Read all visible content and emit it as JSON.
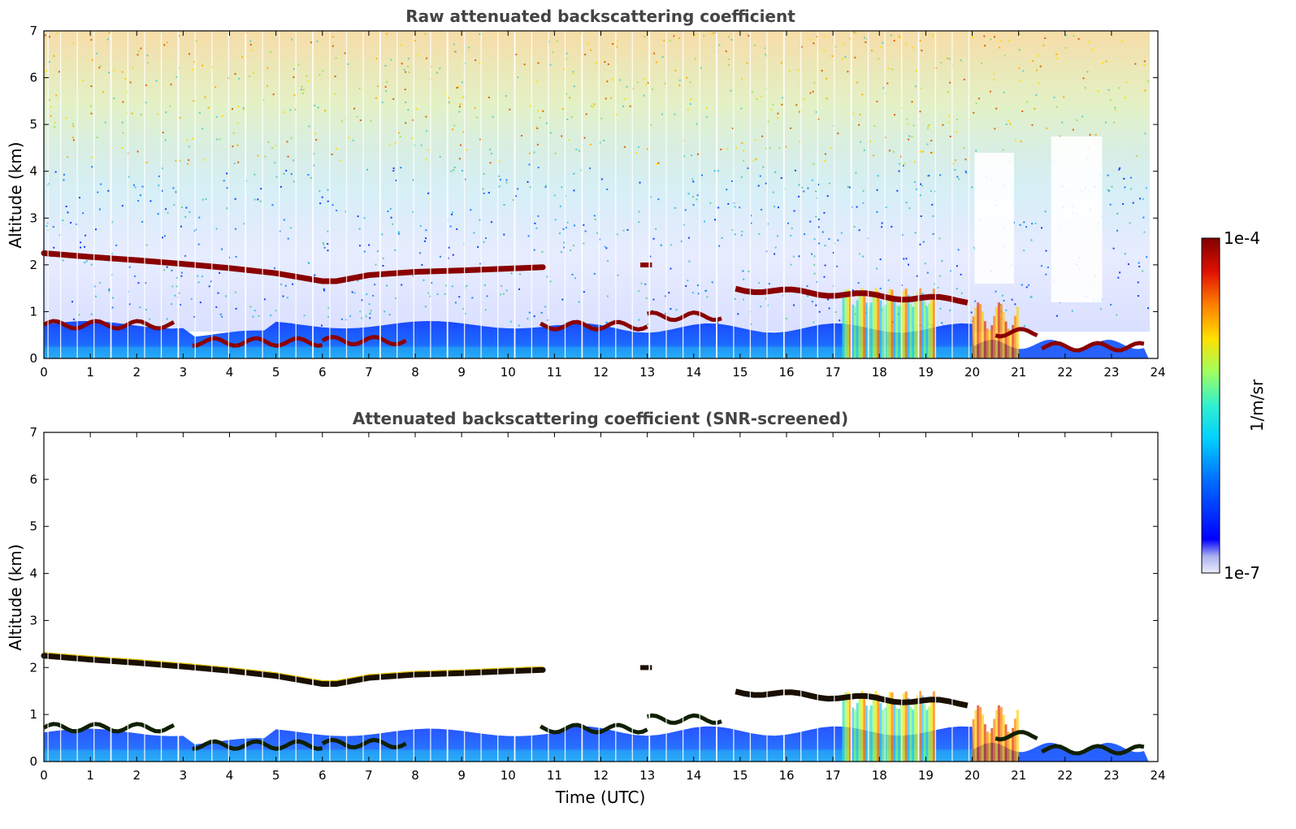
{
  "chart_data": [
    {
      "type": "heatmap",
      "title": "Raw attenuated backscattering coefficient",
      "xlabel": "",
      "ylabel": "Altitude (km)",
      "xlim": [
        0,
        24
      ],
      "ylim": [
        0,
        7
      ],
      "xticks": [
        "0",
        "1",
        "2",
        "3",
        "4",
        "5",
        "6",
        "7",
        "8",
        "9",
        "10",
        "11",
        "12",
        "13",
        "14",
        "15",
        "16",
        "17",
        "18",
        "19",
        "20",
        "21",
        "22",
        "23",
        "24"
      ],
      "yticks": [
        "0",
        "1",
        "2",
        "3",
        "4",
        "5",
        "6",
        "7"
      ],
      "cloud_layer_km": [
        [
          0,
          2.25
        ],
        [
          1,
          2.17
        ],
        [
          2,
          2.1
        ],
        [
          3,
          2.02
        ],
        [
          4,
          1.93
        ],
        [
          5,
          1.82
        ],
        [
          6,
          1.65
        ],
        [
          6.3,
          1.65
        ],
        [
          7,
          1.78
        ],
        [
          8,
          1.85
        ],
        [
          9,
          1.88
        ],
        [
          10,
          1.92
        ],
        [
          10.75,
          1.95
        ]
      ],
      "noise_level": "raw",
      "colorbar_min": "1e-7",
      "colorbar_max": "1e-4",
      "units": "1/m/sr"
    },
    {
      "type": "heatmap",
      "title": "Attenuated backscattering coefficient (SNR-screened)",
      "xlabel": "Time (UTC)",
      "ylabel": "Altitude (km)",
      "xlim": [
        0,
        24
      ],
      "ylim": [
        0,
        7
      ],
      "xticks": [
        "0",
        "1",
        "2",
        "3",
        "4",
        "5",
        "6",
        "7",
        "8",
        "9",
        "10",
        "11",
        "12",
        "13",
        "14",
        "15",
        "16",
        "17",
        "18",
        "19",
        "20",
        "21",
        "22",
        "23",
        "24"
      ],
      "yticks": [
        "0",
        "1",
        "2",
        "3",
        "4",
        "5",
        "6",
        "7"
      ],
      "cloud_layer_km": [
        [
          0,
          2.25
        ],
        [
          1,
          2.17
        ],
        [
          2,
          2.1
        ],
        [
          3,
          2.02
        ],
        [
          4,
          1.93
        ],
        [
          5,
          1.82
        ],
        [
          6,
          1.65
        ],
        [
          6.3,
          1.65
        ],
        [
          7,
          1.78
        ],
        [
          8,
          1.85
        ],
        [
          9,
          1.88
        ],
        [
          10,
          1.92
        ],
        [
          10.75,
          1.95
        ]
      ],
      "noise_level": "screened",
      "colorbar_min": "1e-7",
      "colorbar_max": "1e-4",
      "units": "1/m/sr"
    }
  ],
  "colorbar": {
    "max_label": "1e-4",
    "min_label": "1e-7",
    "units_label": "1/m/sr",
    "colors": [
      "#e8e8f8",
      "#0000ff",
      "#0080ff",
      "#00e0ff",
      "#40ffc0",
      "#c0ff40",
      "#ffe000",
      "#ff8000",
      "#e00000",
      "#800000"
    ]
  }
}
